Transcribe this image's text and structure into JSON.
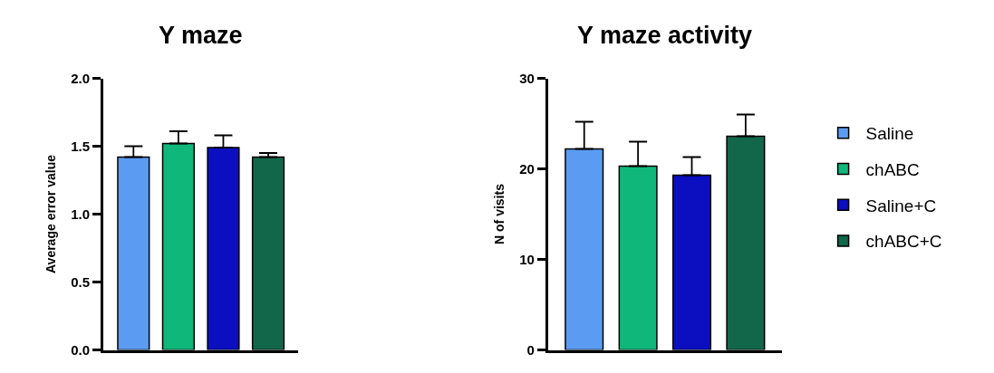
{
  "chart_data": [
    {
      "type": "bar",
      "title": "Y maze",
      "ylabel": "Average error value",
      "categories": [
        null
      ],
      "ylim": [
        0,
        2
      ],
      "yticks": [
        {
          "value": 0,
          "label": "0.0"
        },
        {
          "value": 0.5,
          "label": "0.5"
        },
        {
          "value": 1,
          "label": "1.0"
        },
        {
          "value": 1.5,
          "label": "1.5"
        },
        {
          "value": 2,
          "label": "2.0"
        }
      ],
      "tick_labels": "y",
      "legend": false,
      "series": [
        {
          "color": "#5b9cf2",
          "values": [
            1.42
          ],
          "errors": [
            [
              1.42,
              1.5
            ]
          ]
        },
        {
          "color": "#0fb77a",
          "values": [
            1.52
          ],
          "errors": [
            [
              1.52,
              1.61
            ]
          ]
        },
        {
          "color": "#0b0fc0",
          "values": [
            1.49
          ],
          "errors": [
            [
              1.49,
              1.58
            ]
          ]
        },
        {
          "color": "#12674a",
          "values": [
            1.42
          ],
          "errors": [
            [
              1.42,
              1.45
            ]
          ]
        }
      ]
    },
    {
      "type": "bar",
      "title": "Y maze activity",
      "ylabel": "N of visits",
      "categories": [
        null
      ],
      "ylim": [
        0,
        30
      ],
      "yticks": [
        0,
        10,
        20,
        30
      ],
      "tick_labels": "y",
      "legend": "right",
      "series": [
        {
          "name": "Saline",
          "color": "#5b9cf2",
          "values": [
            22.2
          ],
          "errors": [
            [
              22.2,
              25.2
            ]
          ]
        },
        {
          "name": "chABC",
          "color": "#0fb77a",
          "values": [
            20.3
          ],
          "errors": [
            [
              20.3,
              23.0
            ]
          ]
        },
        {
          "name": "Saline+C",
          "color": "#0b0fc0",
          "values": [
            19.3
          ],
          "errors": [
            [
              19.3,
              21.3
            ]
          ]
        },
        {
          "name": "chABC+C",
          "color": "#12674a",
          "values": [
            23.6
          ],
          "errors": [
            [
              23.6,
              26.0
            ]
          ]
        }
      ]
    }
  ]
}
